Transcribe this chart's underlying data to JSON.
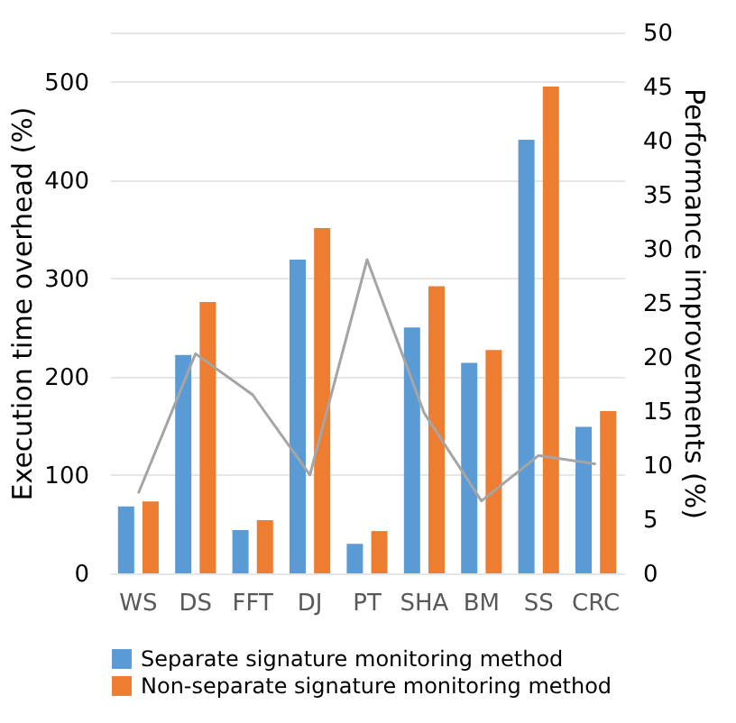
{
  "chart_data": {
    "type": "bar",
    "ylabel": "Execution time overhead (%)",
    "y2label": "Performance improvements (%)",
    "categories": [
      "WS",
      "DS",
      "FFT",
      "DJ",
      "PT",
      "SHA",
      "BM",
      "SS",
      "CRC"
    ],
    "series": [
      {
        "name": "Separate signature monitoring method",
        "color": "#5b9bd5",
        "values": [
          68,
          222,
          44,
          319,
          30,
          250,
          214,
          441,
          149
        ]
      },
      {
        "name": "Non-separate signature monitoring method",
        "color": "#ed7d31",
        "values": [
          73,
          276,
          54,
          351,
          43,
          292,
          227,
          495,
          165
        ]
      },
      {
        "type": "line",
        "axis": "y2",
        "color": "#a5a5a5",
        "values": [
          7.4,
          20.3,
          16.5,
          9.1,
          29,
          14.8,
          6.7,
          10.9,
          10.1
        ]
      }
    ],
    "ylim": [
      0,
      550
    ],
    "yticks": [
      0,
      100,
      200,
      300,
      400,
      500,
      {
        "value": 550,
        "label": null
      }
    ],
    "y2lim": [
      0,
      50
    ],
    "y2ticks": [
      0,
      5,
      10,
      15,
      20,
      25,
      30,
      35,
      40,
      45,
      50
    ],
    "grid": "y",
    "legend": "bottom"
  }
}
